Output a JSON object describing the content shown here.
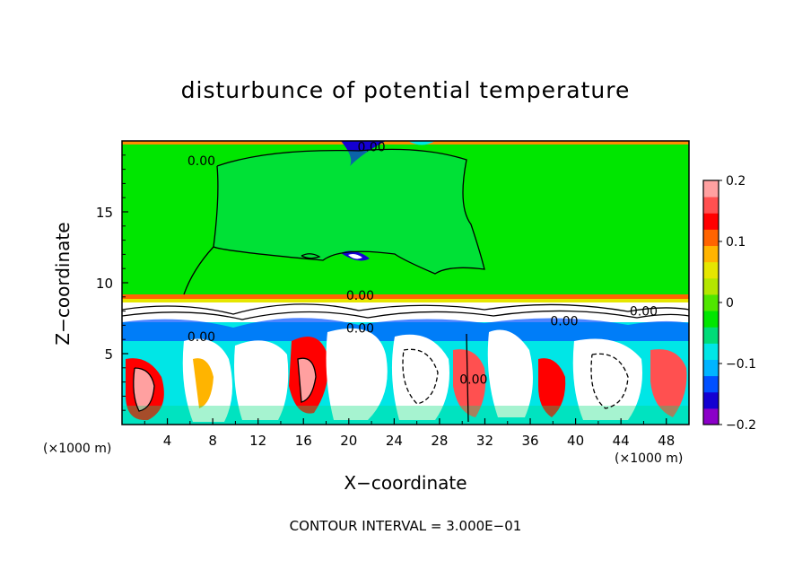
{
  "chart_data": {
    "type": "heatmap",
    "title": "disturbunce of potential temperature",
    "xlabel": "X−coordinate",
    "ylabel": "Z−coordinate",
    "x_unit_left": "(×1000 m)",
    "x_unit_right": "(×1000 m)",
    "xlim": [
      0,
      50
    ],
    "ylim": [
      0,
      20
    ],
    "x_ticks": [
      4,
      8,
      12,
      16,
      20,
      24,
      28,
      32,
      36,
      40,
      44,
      48
    ],
    "y_ticks": [
      5,
      10,
      15
    ],
    "colorbar": {
      "range": [
        -0.2,
        0.2
      ],
      "tick_values": [
        0.2,
        0.1,
        0,
        -0.1,
        -0.2
      ],
      "tick_labels": [
        "0.2",
        "0.1",
        "0",
        "−0.1",
        "−0.2"
      ],
      "colors": [
        "#8b00c8",
        "#1400d2",
        "#0050ff",
        "#00b4ff",
        "#00e6e6",
        "#00dc78",
        "#00e600",
        "#50e600",
        "#b4e600",
        "#e6e600",
        "#ffb400",
        "#ff6400",
        "#ff0000",
        "#ff5050",
        "#ffa0a0"
      ]
    },
    "contour_labels": [
      {
        "text": "0.00",
        "x": 7,
        "y": 18.6
      },
      {
        "text": "0.00",
        "x": 22,
        "y": 19.6
      },
      {
        "text": "0.00",
        "x": 21,
        "y": 9.1
      },
      {
        "text": "0.00",
        "x": 21,
        "y": 6.8
      },
      {
        "text": "0.00",
        "x": 7,
        "y": 6.2
      },
      {
        "text": "0.00",
        "x": 31,
        "y": 3.2
      },
      {
        "text": "0.00",
        "x": 39,
        "y": 7.3
      },
      {
        "text": "0.00",
        "x": 46,
        "y": 8.0
      }
    ],
    "contour_interval": "CONTOUR INTERVAL = 3.000E−01"
  }
}
